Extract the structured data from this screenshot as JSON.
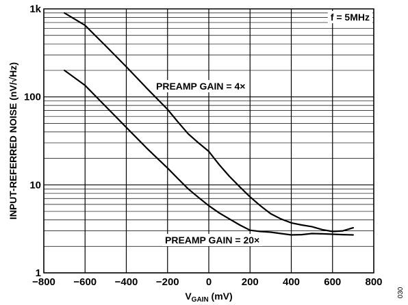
{
  "chart_data": {
    "type": "line",
    "xlabel_main": "V",
    "xlabel_sub": "GAIN",
    "xlabel_unit": " (mV)",
    "ylabel": "INPUT-REFERRED NOISE (nV/√Hz)",
    "xlim": [
      -800,
      800
    ],
    "ylim": [
      1,
      1000
    ],
    "y_scale": "log",
    "grid": true,
    "x_ticks": [
      -800,
      -600,
      -400,
      -200,
      0,
      200,
      400,
      600,
      800
    ],
    "x_tick_labels": [
      "−800",
      "−600",
      "−400",
      "−200",
      "0",
      "200",
      "400",
      "600",
      "800"
    ],
    "y_ticks": [
      1,
      10,
      100,
      1000
    ],
    "y_tick_labels": [
      "1",
      "10",
      "100",
      "1k"
    ],
    "annotations": {
      "frequency": "f = 5MHz",
      "series_4x": "PREAMP GAIN = 4×",
      "series_20x": "PREAMP GAIN = 20×"
    },
    "figure_code": "030",
    "series": [
      {
        "x": [
          -700,
          -600,
          -500,
          -400,
          -300,
          -200,
          -150,
          -100,
          -50,
          0,
          50,
          100,
          150,
          200,
          250,
          300,
          350,
          400,
          450,
          500,
          550,
          600,
          650,
          700
        ],
        "values": [
          900,
          650,
          380,
          220,
          125,
          72,
          52,
          38,
          30,
          24,
          17,
          12.5,
          9.5,
          7.3,
          5.8,
          4.7,
          4.1,
          3.7,
          3.5,
          3.35,
          3.1,
          2.95,
          3.0,
          3.25
        ]
      },
      {
        "x": [
          -700,
          -600,
          -500,
          -400,
          -300,
          -200,
          -150,
          -100,
          -50,
          0,
          50,
          100,
          150,
          200,
          250,
          300,
          350,
          400,
          450,
          500,
          550,
          600,
          650,
          700
        ],
        "values": [
          200,
          135,
          78,
          45,
          26,
          15.5,
          11.8,
          9.0,
          7.2,
          5.8,
          4.8,
          4.1,
          3.5,
          3.05,
          2.95,
          2.9,
          2.8,
          2.7,
          2.72,
          2.8,
          2.78,
          2.75,
          2.72,
          2.7
        ]
      }
    ]
  }
}
